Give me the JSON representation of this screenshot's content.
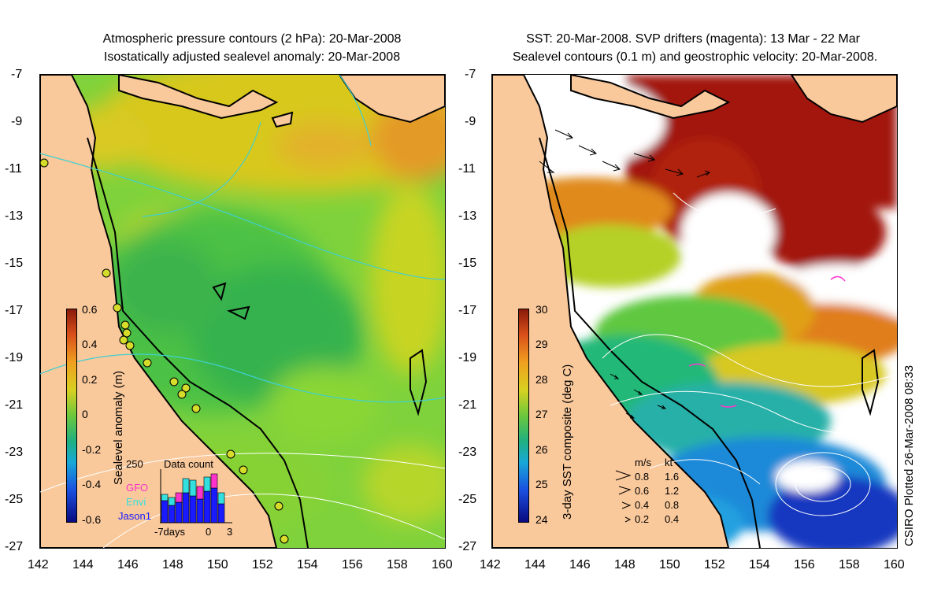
{
  "left_panel": {
    "title_line1": "Atmospheric pressure contours (2 hPa): 20-Mar-2008",
    "title_line2": "Isostatically adjusted sealevel anomaly: 20-Mar-2008",
    "y_ticks": [
      "-7",
      "-9",
      "-11",
      "-13",
      "-15",
      "-17",
      "-19",
      "-21",
      "-23",
      "-25",
      "-27"
    ],
    "x_ticks": [
      "142",
      "144",
      "146",
      "148",
      "150",
      "152",
      "154",
      "156",
      "158",
      "160"
    ],
    "colorbar": {
      "title": "Sealevel anomaly (m)",
      "ticks": [
        "0.6",
        "0.4",
        "0.2",
        "0",
        "-0.2",
        "-0.4",
        "-0.6"
      ]
    },
    "data_count": {
      "title": "Data count",
      "y_max_label": "250",
      "x_labels": [
        "-7days",
        "0",
        "3"
      ],
      "legend": [
        {
          "name": "GFO",
          "color": "#ff33cc"
        },
        {
          "name": "Envi",
          "color": "#33e0e0"
        },
        {
          "name": "Jason1",
          "color": "#1a1aff"
        }
      ]
    }
  },
  "right_panel": {
    "title_line1": "SST: 20-Mar-2008. SVP drifters (magenta): 13 Mar - 22 Mar",
    "title_line2": "Sealevel contours (0.1 m) and geostrophic velocity: 20-Mar-2008.",
    "y_ticks": [
      "-7",
      "-9",
      "-11",
      "-13",
      "-15",
      "-17",
      "-19",
      "-21",
      "-23",
      "-25",
      "-27"
    ],
    "x_ticks": [
      "142",
      "144",
      "146",
      "148",
      "150",
      "152",
      "154",
      "156",
      "158",
      "160"
    ],
    "colorbar": {
      "title": "3-day SST composite (deg C)",
      "ticks": [
        "30",
        "29",
        "28",
        "27",
        "26",
        "25",
        "24"
      ]
    },
    "velocity_legend": {
      "header_ms": "m/s",
      "header_kt": "kt",
      "rows": [
        {
          "ms": "0.8",
          "kt": "1.6"
        },
        {
          "ms": "0.6",
          "kt": "1.2"
        },
        {
          "ms": "0.4",
          "kt": "0.8"
        },
        {
          "ms": "0.2",
          "kt": "0.4"
        }
      ]
    }
  },
  "footer_credit": "CSIRO Plotted 26-Mar-2008 08:33",
  "colors": {
    "land": "#f9c89b",
    "coast": "#000000",
    "pressure_contour": "#40d0d0",
    "sealevel_contour": "#ffffff",
    "drifter": "#ff33cc"
  }
}
